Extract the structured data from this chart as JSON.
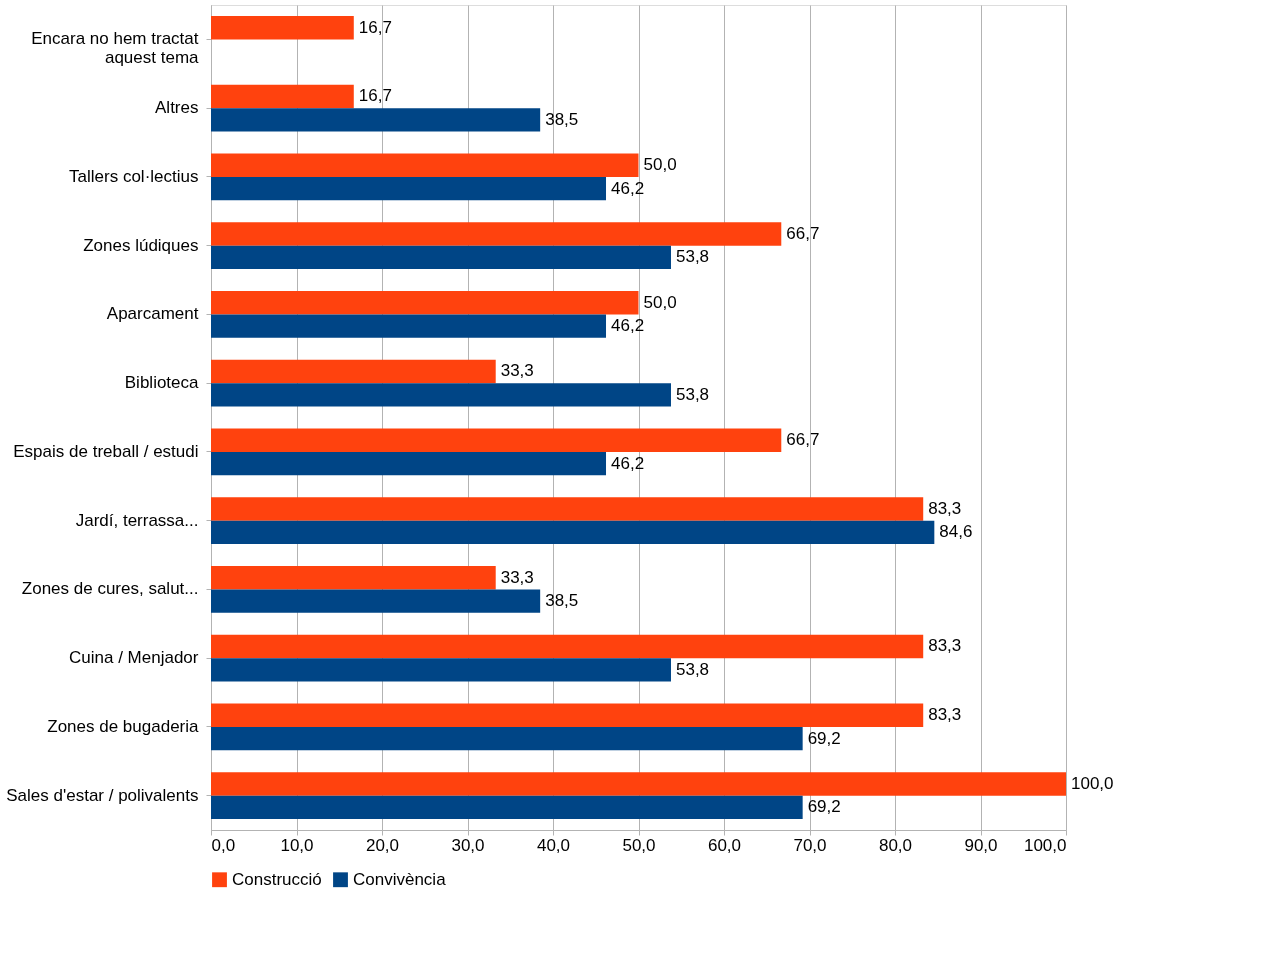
{
  "chart_data": {
    "type": "bar",
    "orientation": "horizontal",
    "categories": [
      "Encara no hem tractat\naquest tema",
      "Altres",
      "Tallers col·lectius",
      "Zones lúdiques",
      "Aparcament",
      "Biblioteca",
      "Espais de treball / estudi",
      "Jardí, terrassa...",
      "Zones de cures, salut...",
      "Cuina / Menjador",
      "Zones de bugaderia",
      "Sales d'estar / polivalents"
    ],
    "series": [
      {
        "name": "Construcció",
        "color": "#ff420e",
        "values": [
          16.7,
          16.7,
          50.0,
          66.7,
          50.0,
          33.3,
          66.7,
          83.3,
          33.3,
          83.3,
          83.3,
          100.0
        ],
        "value_labels": [
          "16,7",
          "16,7",
          "50,0",
          "66,7",
          "50,0",
          "33,3",
          "66,7",
          "83,3",
          "33,3",
          "83,3",
          "83,3",
          "100,0"
        ]
      },
      {
        "name": "Convivència",
        "color": "#004586",
        "values": [
          0,
          38.5,
          46.2,
          53.8,
          46.2,
          53.8,
          46.2,
          84.6,
          38.5,
          53.8,
          69.2,
          69.2
        ],
        "value_labels": [
          null,
          "38,5",
          "46,2",
          "53,8",
          "46,2",
          "53,8",
          "46,2",
          "84,6",
          "38,5",
          "53,8",
          "69,2",
          "69,2"
        ]
      }
    ],
    "xlim": [
      0,
      100
    ],
    "xticks": [
      {
        "value": 0,
        "label": "0,0"
      },
      {
        "value": 10,
        "label": "10,0"
      },
      {
        "value": 20,
        "label": "20,0"
      },
      {
        "value": 30,
        "label": "30,0"
      },
      {
        "value": 40,
        "label": "40,0"
      },
      {
        "value": 50,
        "label": "50,0"
      },
      {
        "value": 60,
        "label": "60,0"
      },
      {
        "value": 70,
        "label": "70,0"
      },
      {
        "value": 80,
        "label": "80,0"
      },
      {
        "value": 90,
        "label": "90,0"
      },
      {
        "value": 100,
        "label": "100,0"
      }
    ],
    "grid": "x",
    "legend": "bottom"
  }
}
